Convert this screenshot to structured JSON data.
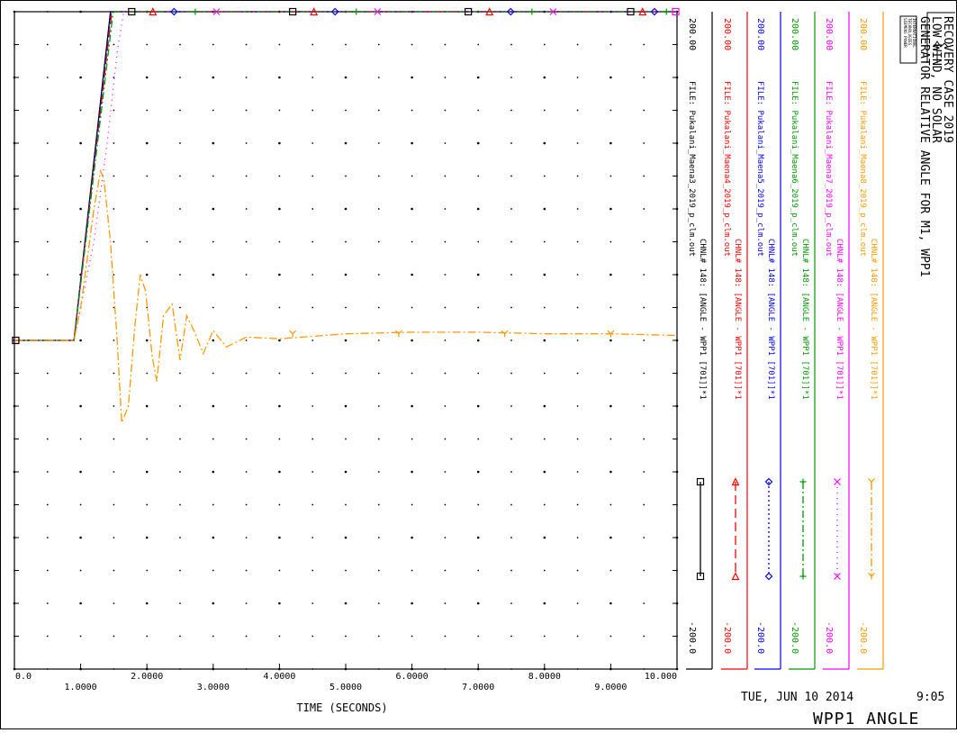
{
  "chart_data": {
    "type": "line",
    "title_lines": [
      "RECOVERY CASE 2019",
      "LOW WIND, NO SOLAR",
      "GENERATOR RELATIVE ANGLE FOR M1, WPP1"
    ],
    "logo_text": [
      "SIEMENS POWER",
      "TECHNOLOGIES",
      "INTERNATIONAL"
    ],
    "xlabel": "TIME (SECONDS)",
    "xlim": [
      0,
      10
    ],
    "x_ticks": [
      "0.0",
      "1.0000",
      "2.0000",
      "3.0000",
      "4.0000",
      "5.0000",
      "6.0000",
      "7.0000",
      "8.0000",
      "9.0000",
      "10.000"
    ],
    "ylim": [
      -200,
      200
    ],
    "date_text": "TUE, JUN 10 2014",
    "time_text": "9:05",
    "footer_label": "WPP1 ANGLE",
    "channels": [
      {
        "color": "#000000",
        "style": "solid",
        "marker": "square",
        "max": "200.00",
        "min": "-200.0",
        "chnl": "CHNL# 148: [ANGLE - WPP1  [701]]*1",
        "file": "FILE: Pukalani_Maena3_2019_p_clm.out"
      },
      {
        "color": "#ff0000",
        "style": "dash",
        "marker": "triangle",
        "max": "200.00",
        "min": "-200.0",
        "chnl": "CHNL# 148: [ANGLE - WPP1  [701]]*1",
        "file": "FILE: Pukalani_Maena4_2019_p_clm.out"
      },
      {
        "color": "#0000ff",
        "style": "dot",
        "marker": "diamond",
        "max": "200.00",
        "min": "-200.0",
        "chnl": "CHNL# 148: [ANGLE - WPP1  [701]]*1",
        "file": "FILE: Pukalani_Maena5_2019_p_clm.out"
      },
      {
        "color": "#009900",
        "style": "dashdot",
        "marker": "plus",
        "max": "200.00",
        "min": "-200.0",
        "chnl": "CHNL# 148: [ANGLE - WPP1  [701]]*1",
        "file": "FILE: Pukalani_Maena6_2019_p_clm.out"
      },
      {
        "color": "#ff00ff",
        "style": "sparsedot",
        "marker": "cross",
        "max": "200.00",
        "min": "-200.0",
        "chnl": "CHNL# 148: [ANGLE - WPP1  [701]]*1",
        "file": "FILE: Pukalani_Maena7_2019_p_clm.out"
      },
      {
        "color": "#ff9900",
        "style": "dashdot2",
        "marker": "y",
        "max": "200.00",
        "min": "-200.0",
        "chnl": "CHNL# 148: [ANGLE - WPP1  [701]]*1",
        "file": "FILE: Pukalani_Maena8_2019_p_clm.out"
      }
    ],
    "series": [
      {
        "channel": 0,
        "x": [
          0,
          0.9,
          1.45
        ],
        "y": [
          0,
          0,
          200
        ]
      },
      {
        "channel": 1,
        "x": [
          0,
          0.9,
          1.47
        ],
        "y": [
          0,
          0,
          200
        ]
      },
      {
        "channel": 2,
        "x": [
          0,
          0.9,
          1.46
        ],
        "y": [
          0,
          0,
          200
        ]
      },
      {
        "channel": 3,
        "x": [
          0,
          0.9,
          1.49
        ],
        "y": [
          0,
          0,
          200
        ]
      },
      {
        "channel": 4,
        "x": [
          0,
          0.9,
          1.2,
          1.4,
          1.55,
          1.65
        ],
        "y": [
          0,
          0,
          60,
          120,
          175,
          200
        ]
      },
      {
        "channel": 5,
        "x": [
          0,
          0.9,
          1.0,
          1.1,
          1.2,
          1.3,
          1.35,
          1.45,
          1.55,
          1.62,
          1.72,
          1.82,
          1.9,
          1.98,
          2.08,
          2.15,
          2.25,
          2.38,
          2.5,
          2.6,
          2.72,
          2.85,
          3.0,
          3.2,
          3.5,
          4.0,
          5.0,
          6.0,
          7.0,
          8.0,
          9.0,
          10.0
        ],
        "y": [
          0,
          0,
          20,
          50,
          80,
          103,
          98,
          60,
          0,
          -50,
          -40,
          10,
          40,
          30,
          -10,
          -25,
          15,
          22,
          -12,
          15,
          5,
          -8,
          6,
          -4,
          2,
          1,
          4,
          5,
          5,
          4,
          4,
          3
        ]
      }
    ],
    "grid": "dots"
  }
}
